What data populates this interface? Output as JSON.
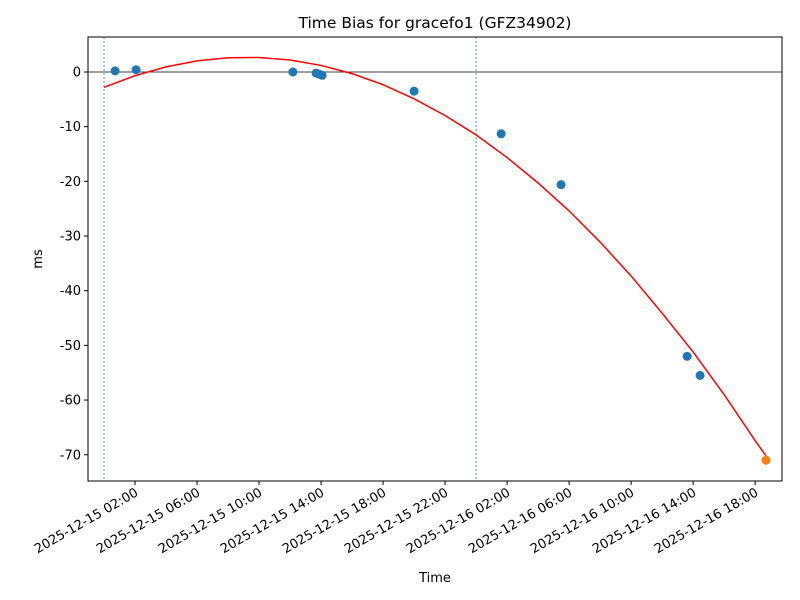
{
  "chart_data": {
    "type": "scatter",
    "title": "Time Bias for gracefo1 (GFZ34902)",
    "x_label": "Time",
    "y_label": "ms",
    "xlim": [
      "2025-12-14 22:58",
      "2025-12-16 19:44"
    ],
    "xticks": [
      "2025-12-15 02:00",
      "2025-12-15 06:00",
      "2025-12-15 10:00",
      "2025-12-15 14:00",
      "2025-12-15 18:00",
      "2025-12-15 22:00",
      "2025-12-16 02:00",
      "2025-12-16 06:00",
      "2025-12-16 10:00",
      "2025-12-16 14:00",
      "2025-12-16 18:00"
    ],
    "ylim": [
      -74.8,
      6.4
    ],
    "yticks": [
      0,
      -10,
      -20,
      -30,
      -40,
      -50,
      -60,
      -70
    ],
    "hline": 0,
    "vlines": [
      "2025-12-15 00:00",
      "2025-12-16 00:00"
    ],
    "series": [
      {
        "type": "line",
        "color": "#ff0000",
        "x": [
          "2025-12-15 00:00",
          "2025-12-15 02:00",
          "2025-12-15 04:00",
          "2025-12-15 06:00",
          "2025-12-15 08:00",
          "2025-12-15 10:00",
          "2025-12-15 12:00",
          "2025-12-15 14:00",
          "2025-12-15 16:00",
          "2025-12-15 18:00",
          "2025-12-15 20:00",
          "2025-12-15 22:00",
          "2025-12-16 00:00",
          "2025-12-16 02:00",
          "2025-12-16 04:00",
          "2025-12-16 06:00",
          "2025-12-16 08:00",
          "2025-12-16 10:00",
          "2025-12-16 12:00",
          "2025-12-16 14:00",
          "2025-12-16 16:00",
          "2025-12-16 18:00",
          "2025-12-16 18:42"
        ],
        "values": [
          -2.8,
          -0.67,
          0.94,
          2.03,
          2.6,
          2.66,
          2.19,
          1.2,
          -0.3,
          -2.33,
          -4.9,
          -7.95,
          -11.5,
          -15.65,
          -20.3,
          -25.4,
          -31.1,
          -37.3,
          -44.1,
          -51.2,
          -59.0,
          -67.4,
          -70.2
        ]
      },
      {
        "type": "scatter",
        "color": "#1f77b4",
        "x": [
          "2025-12-15 00:43",
          "2025-12-15 02:04",
          "2025-12-15 12:11",
          "2025-12-15 13:41",
          "2025-12-15 13:52",
          "2025-12-15 14:04",
          "2025-12-15 20:00",
          "2025-12-16 01:37",
          "2025-12-16 05:29",
          "2025-12-16 13:37",
          "2025-12-16 14:27"
        ],
        "values": [
          0.2,
          0.4,
          0,
          -0.2,
          -0.4,
          -0.6,
          -3.5,
          -11.3,
          -20.6,
          -52,
          -55.5
        ]
      },
      {
        "type": "scatter",
        "color": "#ff7f0e",
        "x": [
          "2025-12-16 18:42"
        ],
        "values": [
          -71
        ]
      }
    ]
  }
}
